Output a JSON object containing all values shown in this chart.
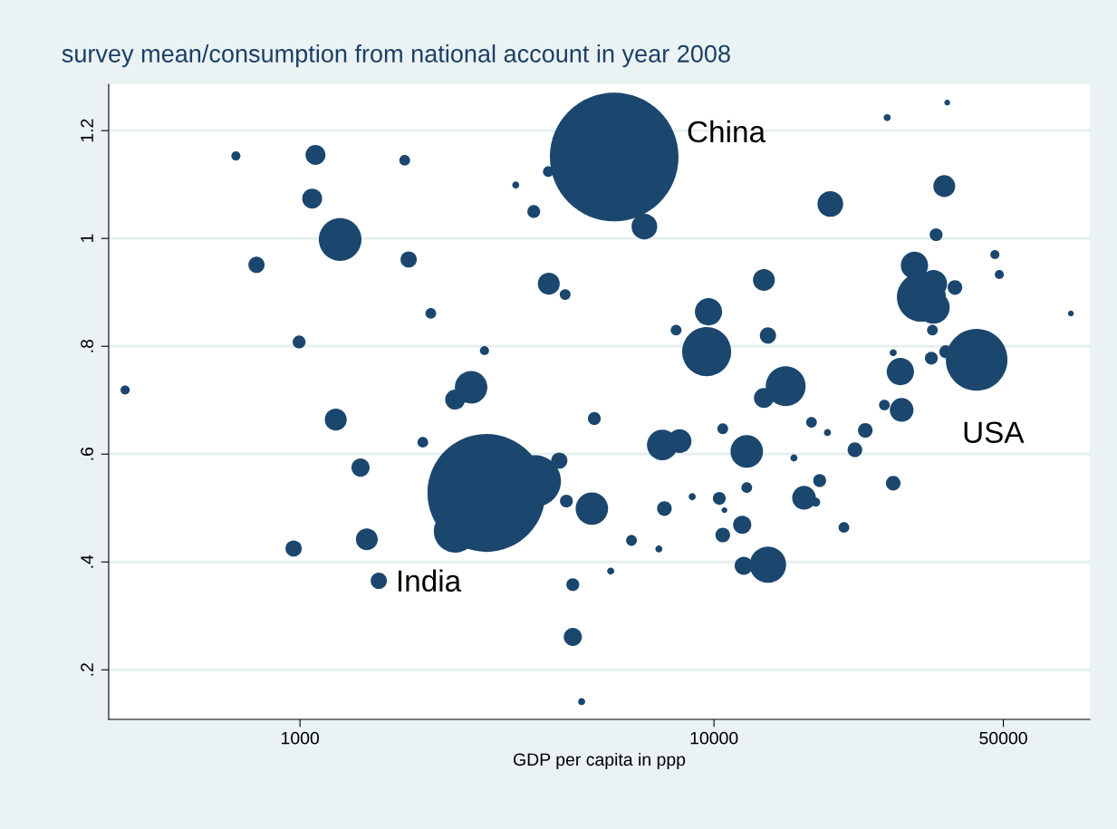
{
  "chart_data": {
    "type": "bubble",
    "title": "survey mean/consumption from national account in year 2008",
    "xlabel": "GDP per capita in ppp",
    "log": "x",
    "grid": "y",
    "color": "#1b476f",
    "xlim": [
      345,
      80900
    ],
    "xticks": [
      1000,
      10000,
      50000
    ],
    "ylim": [
      0.108,
      1.286
    ],
    "yticks": [
      {
        "value": 0.2,
        "label": ".2"
      },
      {
        "value": 0.4,
        "label": ".4"
      },
      {
        "value": 0.6,
        "label": ".6"
      },
      {
        "value": 0.8,
        "label": ".8"
      },
      {
        "value": 1,
        "label": "1"
      },
      {
        "value": 1.2,
        "label": "1.2"
      }
    ],
    "x": [
      378,
      700,
      1090,
      1070,
      1250,
      785,
      1790,
      1830,
      2070,
      995,
      1220,
      1980,
      1400,
      965,
      1450,
      1550,
      2370,
      2590,
      2790,
      2820,
      2370,
      3700,
      4230,
      4400,
      5070,
      4560,
      4560,
      4790,
      5140,
      3320,
      3670,
      3980,
      3990,
      4370,
      5740,
      6790,
      6320,
      5630,
      7360,
      7590,
      7500,
      8260,
      8100,
      8860,
      9700,
      9600,
      10300,
      10500,
      10500,
      10600,
      11700,
      12000,
      11800,
      12000,
      13200,
      13500,
      13500,
      13200,
      14900,
      15600,
      16500,
      17200,
      17600,
      18000,
      18800,
      19100,
      20600,
      21900,
      23200,
      26200,
      25800,
      27100,
      27100,
      28200,
      28400,
      30500,
      31700,
      33900,
      33900,
      33500,
      33700,
      34400,
      36000,
      36300,
      38200,
      43100,
      36600,
      47700,
      48900,
      72800
    ],
    "values": [
      0.719,
      1.153,
      1.155,
      1.074,
      0.998,
      0.951,
      1.145,
      0.961,
      0.861,
      0.808,
      0.664,
      0.622,
      0.575,
      0.425,
      0.442,
      0.365,
      0.701,
      0.724,
      0.792,
      0.528,
      0.457,
      0.55,
      0.588,
      0.513,
      0.499,
      0.358,
      0.261,
      0.141,
      0.666,
      1.099,
      1.05,
      1.124,
      0.916,
      0.896,
      1.151,
      1.022,
      0.44,
      0.383,
      0.424,
      0.499,
      0.617,
      0.624,
      0.83,
      0.521,
      0.864,
      0.79,
      0.518,
      0.647,
      0.45,
      0.496,
      0.469,
      0.605,
      0.393,
      0.538,
      0.923,
      0.82,
      0.395,
      0.704,
      0.726,
      0.593,
      0.519,
      0.659,
      0.511,
      0.551,
      0.64,
      1.064,
      0.464,
      0.608,
      0.644,
      1.224,
      0.691,
      0.788,
      0.546,
      0.753,
      0.682,
      0.95,
      0.891,
      0.916,
      0.872,
      0.778,
      0.83,
      1.007,
      1.097,
      0.79,
      0.909,
      0.775,
      1.252,
      0.97,
      0.933,
      0.861
    ],
    "sizes": [
      0.005,
      0.005,
      0.024,
      0.024,
      0.11,
      0.016,
      0.007,
      0.016,
      0.007,
      0.01,
      0.029,
      0.007,
      0.02,
      0.016,
      0.029,
      0.016,
      0.024,
      0.064,
      0.005,
      0.84,
      0.11,
      0.16,
      0.016,
      0.01,
      0.064,
      0.01,
      0.02,
      0.003,
      0.01,
      0.003,
      0.01,
      0.007,
      0.029,
      0.007,
      1,
      0.04,
      0.007,
      0.003,
      0.003,
      0.013,
      0.057,
      0.034,
      0.007,
      0.003,
      0.045,
      0.145,
      0.01,
      0.007,
      0.013,
      0.002,
      0.02,
      0.064,
      0.02,
      0.007,
      0.029,
      0.016,
      0.08,
      0.024,
      0.096,
      0.003,
      0.034,
      0.007,
      0.005,
      0.01,
      0.003,
      0.04,
      0.007,
      0.013,
      0.013,
      0.003,
      0.007,
      0.003,
      0.013,
      0.045,
      0.034,
      0.045,
      0.145,
      0.045,
      0.064,
      0.01,
      0.007,
      0.01,
      0.029,
      0.01,
      0.013,
      0.23,
      0.002,
      0.005,
      0.005,
      0.002
    ],
    "annotations": [
      {
        "text": "China",
        "x": 5740,
        "y": 1.151
      },
      {
        "text": "India",
        "x": 2820,
        "y": 0.528
      },
      {
        "text": "USA",
        "x": 43100,
        "y": 0.775
      }
    ]
  }
}
